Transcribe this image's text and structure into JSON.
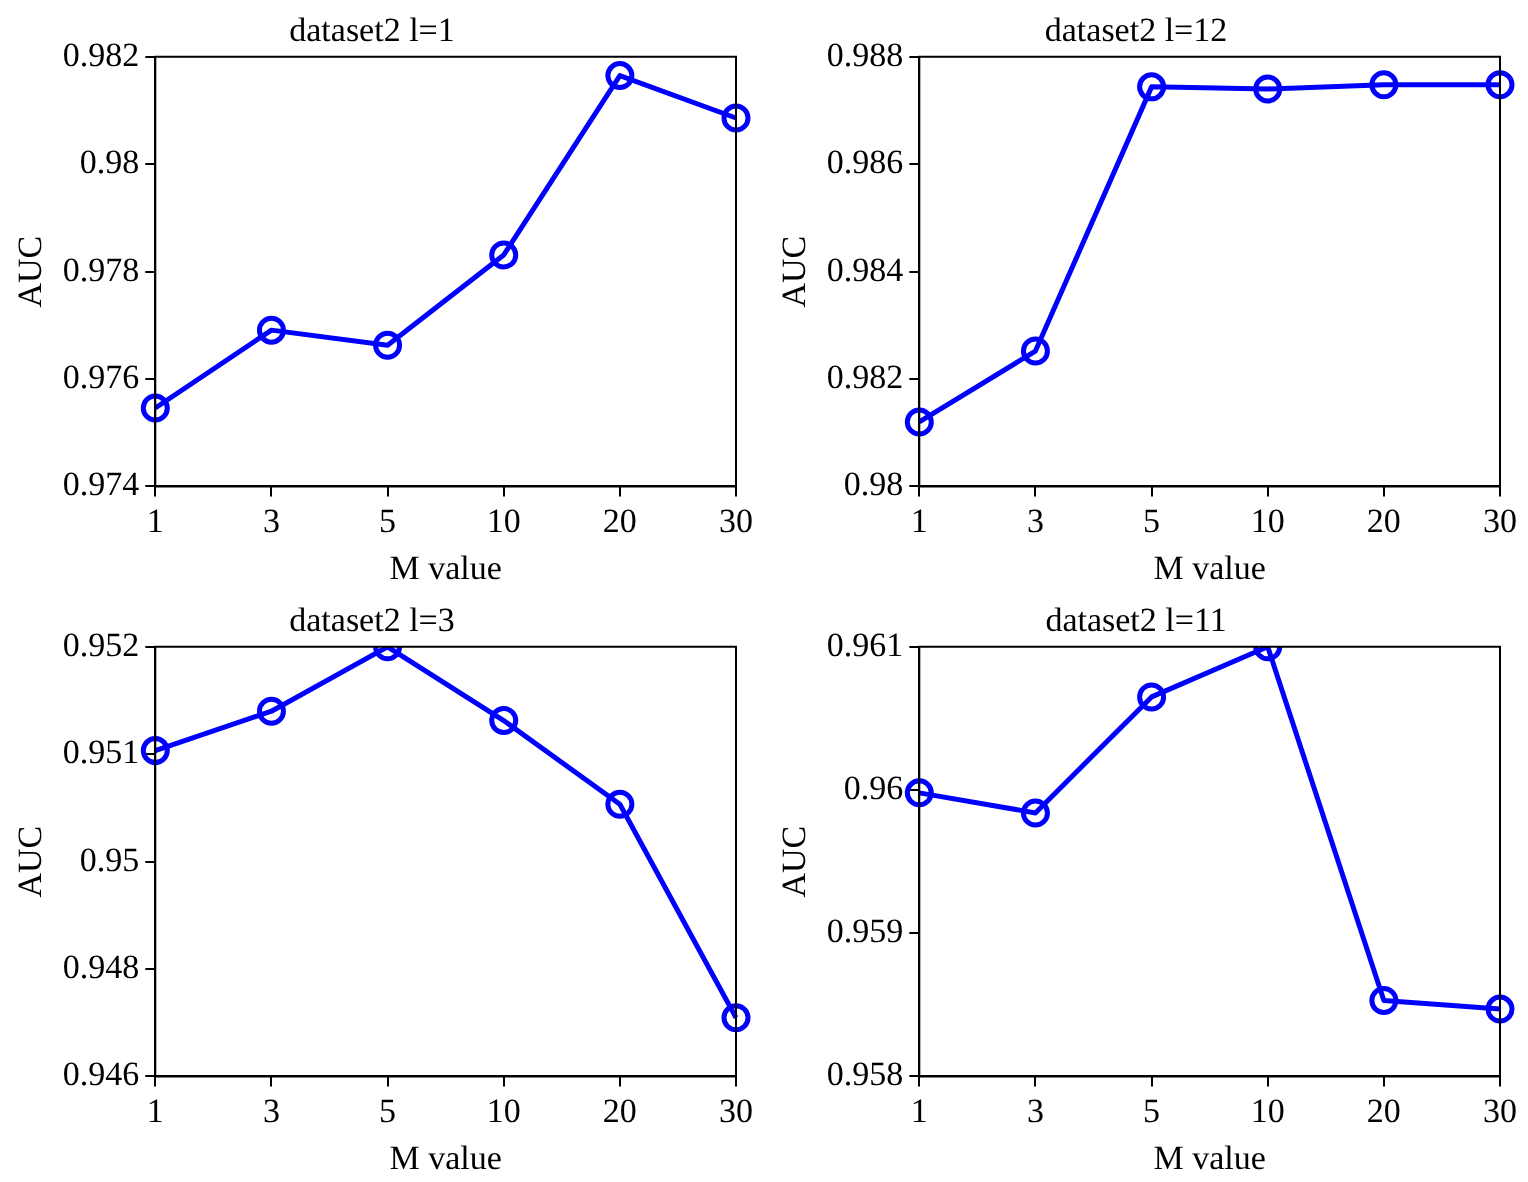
{
  "chart_data": [
    {
      "type": "line",
      "title": "dataset2 l=1",
      "xlabel": "M value",
      "ylabel": "AUC",
      "categories": [
        "1",
        "3",
        "5",
        "10",
        "20",
        "30"
      ],
      "series": [
        {
          "color": "#0000ff",
          "values": [
            0.97546,
            0.97691,
            0.97663,
            0.97831,
            0.98165,
            0.98086
          ]
        }
      ],
      "ylim": [
        0.974,
        0.982
      ],
      "yticks": [
        0.974,
        0.976,
        0.978,
        0.98,
        0.982
      ],
      "grid": false,
      "legend": false,
      "marker": "circle",
      "line_style": "solid"
    },
    {
      "type": "line",
      "title": "dataset2 l=12",
      "xlabel": "M value",
      "ylabel": "AUC",
      "categories": [
        "1",
        "3",
        "5",
        "10",
        "20",
        "30"
      ],
      "series": [
        {
          "color": "#0000ff",
          "values": [
            0.9812,
            0.98252,
            0.98744,
            0.9874,
            0.98748,
            0.98748
          ]
        }
      ],
      "ylim": [
        0.98,
        0.988
      ],
      "yticks": [
        0.98,
        0.982,
        0.984,
        0.986,
        0.988
      ],
      "grid": false,
      "legend": false,
      "marker": "circle",
      "line_style": "solid"
    },
    {
      "type": "line",
      "title": "dataset2 l=3",
      "xlabel": "M value",
      "ylabel": "AUC",
      "categories": [
        "1",
        "3",
        "5",
        "10",
        "20",
        "30"
      ],
      "series": [
        {
          "color": "#0000ff",
          "values": [
            0.95055,
            0.9511,
            0.952,
            0.95097,
            0.9498,
            0.94682
          ]
        }
      ],
      "ylim": [
        0.946,
        0.952
      ],
      "yticks": [
        0.946,
        {
          "value": 0.9475,
          "label": "0.948"
        },
        {
          "value": 0.949,
          "label": "0.95"
        },
        {
          "value": 0.9505,
          "label": "0.951"
        },
        0.952
      ],
      "grid": false,
      "legend": false,
      "marker": "circle",
      "line_style": "solid"
    },
    {
      "type": "line",
      "title": "dataset2 l=11",
      "xlabel": "M value",
      "ylabel": "AUC",
      "categories": [
        "1",
        "3",
        "5",
        "10",
        "20",
        "30"
      ],
      "series": [
        {
          "color": "#0000ff",
          "values": [
            0.95998,
            0.95984,
            0.96065,
            0.961,
            0.95853,
            0.95847
          ]
        }
      ],
      "ylim": [
        0.958,
        0.961
      ],
      "yticks": [
        0.958,
        0.959,
        0.96,
        0.961
      ],
      "grid": false,
      "legend": false,
      "marker": "circle",
      "line_style": "solid"
    }
  ]
}
